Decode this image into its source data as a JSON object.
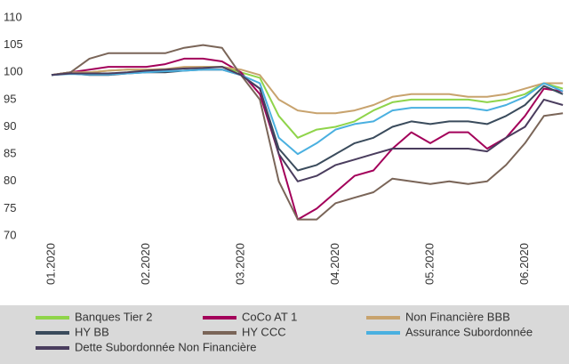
{
  "chart_data": {
    "type": "line",
    "categories": [
      "01.2020",
      null,
      null,
      null,
      null,
      "02.2020",
      null,
      null,
      null,
      null,
      "03.2020",
      null,
      null,
      null,
      null,
      "04.2020",
      null,
      null,
      null,
      null,
      "05.2020",
      null,
      null,
      null,
      null,
      "06.2020",
      null,
      null
    ],
    "series": [
      {
        "name": "Banques Tier 2",
        "color": "#8fd44a",
        "values": [
          99.5,
          100,
          100,
          100.3,
          100.5,
          100.5,
          100.6,
          100.8,
          101,
          101,
          100,
          99,
          92,
          88,
          89.5,
          90,
          91,
          93,
          94.5,
          95,
          95,
          95,
          95,
          94.5,
          95,
          96,
          98,
          97
        ]
      },
      {
        "name": "CoCo AT 1",
        "color": "#a3005a",
        "values": [
          99.5,
          100,
          100.5,
          101,
          101,
          101,
          101.5,
          102.5,
          102.5,
          102,
          100,
          96,
          85,
          73,
          75,
          78,
          81,
          82,
          86,
          89,
          87,
          89,
          89,
          86,
          88,
          92,
          97,
          96.5
        ]
      },
      {
        "name": "Non Financière BBB",
        "color": "#c8a36e",
        "values": [
          99.5,
          100,
          100,
          100.3,
          100.5,
          100.5,
          100.6,
          101,
          101,
          101,
          100.5,
          99.5,
          95,
          93,
          92.5,
          92.5,
          93,
          94,
          95.5,
          96,
          96,
          96,
          95.5,
          95.5,
          96,
          97,
          98,
          98
        ]
      },
      {
        "name": "HY BB",
        "color": "#3a4b5c",
        "values": [
          99.5,
          99.8,
          99.5,
          99.5,
          99.8,
          100,
          100,
          100.3,
          100.5,
          100.5,
          99.5,
          97,
          86,
          82,
          83,
          85,
          87,
          88,
          90,
          91,
          90.5,
          91,
          91,
          90.5,
          92,
          94,
          97.5,
          96
        ]
      },
      {
        "name": "HY CCC",
        "color": "#7a6558",
        "values": [
          99.5,
          100,
          102.5,
          103.5,
          103.5,
          103.5,
          103.5,
          104.5,
          105,
          104.5,
          99.5,
          95,
          80,
          73,
          73,
          76,
          77,
          78,
          80.5,
          80,
          79.5,
          80,
          79.5,
          80,
          83,
          87,
          92,
          92.5
        ]
      },
      {
        "name": "Assurance Subordonnée",
        "color": "#4ab0e0",
        "values": [
          99.5,
          99.7,
          99.6,
          99.6,
          99.8,
          100,
          100.2,
          100.3,
          100.5,
          100.5,
          99.5,
          98,
          88,
          85,
          87,
          89.5,
          90.5,
          91,
          93,
          93.5,
          93.5,
          93.5,
          93.5,
          93,
          94,
          95.5,
          98,
          96.5
        ]
      },
      {
        "name": "Dette Subordonnée Non Financière",
        "color": "#4a3d5e",
        "values": [
          99.5,
          99.8,
          99.8,
          99.8,
          100,
          100.3,
          100.5,
          100.7,
          100.8,
          101,
          99.5,
          97,
          85,
          80,
          81,
          83,
          84,
          85,
          86,
          86,
          86,
          86,
          86,
          85.5,
          88,
          90,
          95,
          94
        ]
      }
    ],
    "ylim": [
      70,
      110
    ],
    "yticks": [
      70,
      75,
      80,
      85,
      90,
      95,
      100,
      105,
      110
    ],
    "legend": "bottom"
  }
}
